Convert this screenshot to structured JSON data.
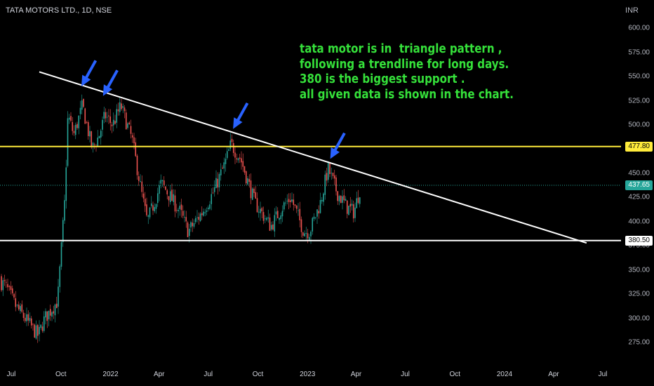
{
  "header": {
    "symbol": "TATA MOTORS LTD., 1D, NSE",
    "currency": "INR"
  },
  "annotation": {
    "lines": [
      "tata motor is in  triangle pattern ,",
      "following a trendline for long days.",
      "380 is the biggest support .",
      "all given data is shown in the chart."
    ]
  },
  "colors": {
    "background": "#000000",
    "candle_up": "#26a69a",
    "candle_down": "#ef5350",
    "trendline": "#ffffff",
    "resistance": "#ffeb3b",
    "support": "#ffffff",
    "arrow": "#2962ff",
    "text_green": "#35e03a"
  },
  "chart_data": {
    "type": "candlestick",
    "interval": "1D",
    "yrange": [
      262,
      617
    ],
    "yticks": [
      "600.00",
      "575.00",
      "550.00",
      "525.00",
      "500.00",
      "475.00",
      "450.00",
      "425.00",
      "400.00",
      "375.00",
      "350.00",
      "325.00",
      "300.00",
      "275.00"
    ],
    "xticks": [
      {
        "label": "Jul",
        "date": "2021-07-01"
      },
      {
        "label": "Oct",
        "date": "2021-10-01"
      },
      {
        "label": "2022",
        "date": "2022-01-01"
      },
      {
        "label": "Apr",
        "date": "2022-04-01"
      },
      {
        "label": "Jul",
        "date": "2022-07-01"
      },
      {
        "label": "Oct",
        "date": "2022-10-01"
      },
      {
        "label": "2023",
        "date": "2023-01-01"
      },
      {
        "label": "Apr",
        "date": "2023-04-01"
      },
      {
        "label": "Jul",
        "date": "2023-07-01"
      },
      {
        "label": "Oct",
        "date": "2023-10-01"
      },
      {
        "label": "2024",
        "date": "2024-01-01"
      },
      {
        "label": "Apr",
        "date": "2024-04-01"
      },
      {
        "label": "Jul",
        "date": "2024-07-01"
      }
    ],
    "last_price": "437.65",
    "resistance_level": "477.80",
    "support_level": "380.50",
    "trendline": [
      {
        "date": "2021-08-22",
        "price": 555
      },
      {
        "date": "2024-06-01",
        "price": 378
      }
    ],
    "arrows": [
      {
        "date": "2021-11-08",
        "price": 540
      },
      {
        "date": "2021-12-18",
        "price": 530
      },
      {
        "date": "2022-08-16",
        "price": 496
      },
      {
        "date": "2023-02-12",
        "price": 465
      }
    ],
    "price_path": [
      {
        "date": "2021-06-01",
        "price": 342
      },
      {
        "date": "2021-06-20",
        "price": 334
      },
      {
        "date": "2021-07-10",
        "price": 312
      },
      {
        "date": "2021-08-01",
        "price": 296
      },
      {
        "date": "2021-08-20",
        "price": 282
      },
      {
        "date": "2021-09-01",
        "price": 300
      },
      {
        "date": "2021-09-25",
        "price": 318
      },
      {
        "date": "2021-10-08",
        "price": 420
      },
      {
        "date": "2021-10-14",
        "price": 510
      },
      {
        "date": "2021-10-25",
        "price": 490
      },
      {
        "date": "2021-11-10",
        "price": 520
      },
      {
        "date": "2021-11-28",
        "price": 475
      },
      {
        "date": "2021-12-10",
        "price": 488
      },
      {
        "date": "2021-12-22",
        "price": 510
      },
      {
        "date": "2022-01-05",
        "price": 500
      },
      {
        "date": "2022-01-20",
        "price": 520
      },
      {
        "date": "2022-02-10",
        "price": 485
      },
      {
        "date": "2022-03-01",
        "price": 425
      },
      {
        "date": "2022-03-10",
        "price": 400
      },
      {
        "date": "2022-04-05",
        "price": 440
      },
      {
        "date": "2022-05-10",
        "price": 410
      },
      {
        "date": "2022-05-25",
        "price": 390
      },
      {
        "date": "2022-06-20",
        "price": 410
      },
      {
        "date": "2022-07-10",
        "price": 430
      },
      {
        "date": "2022-08-01",
        "price": 460
      },
      {
        "date": "2022-08-12",
        "price": 480
      },
      {
        "date": "2022-08-30",
        "price": 465
      },
      {
        "date": "2022-09-25",
        "price": 420
      },
      {
        "date": "2022-10-25",
        "price": 395
      },
      {
        "date": "2022-11-15",
        "price": 415
      },
      {
        "date": "2022-12-01",
        "price": 425
      },
      {
        "date": "2022-12-25",
        "price": 390
      },
      {
        "date": "2023-01-05",
        "price": 390
      },
      {
        "date": "2023-01-25",
        "price": 420
      },
      {
        "date": "2023-02-08",
        "price": 455
      },
      {
        "date": "2023-02-25",
        "price": 430
      },
      {
        "date": "2023-03-15",
        "price": 415
      },
      {
        "date": "2023-03-28",
        "price": 410
      },
      {
        "date": "2023-04-10",
        "price": 437.65
      }
    ]
  }
}
